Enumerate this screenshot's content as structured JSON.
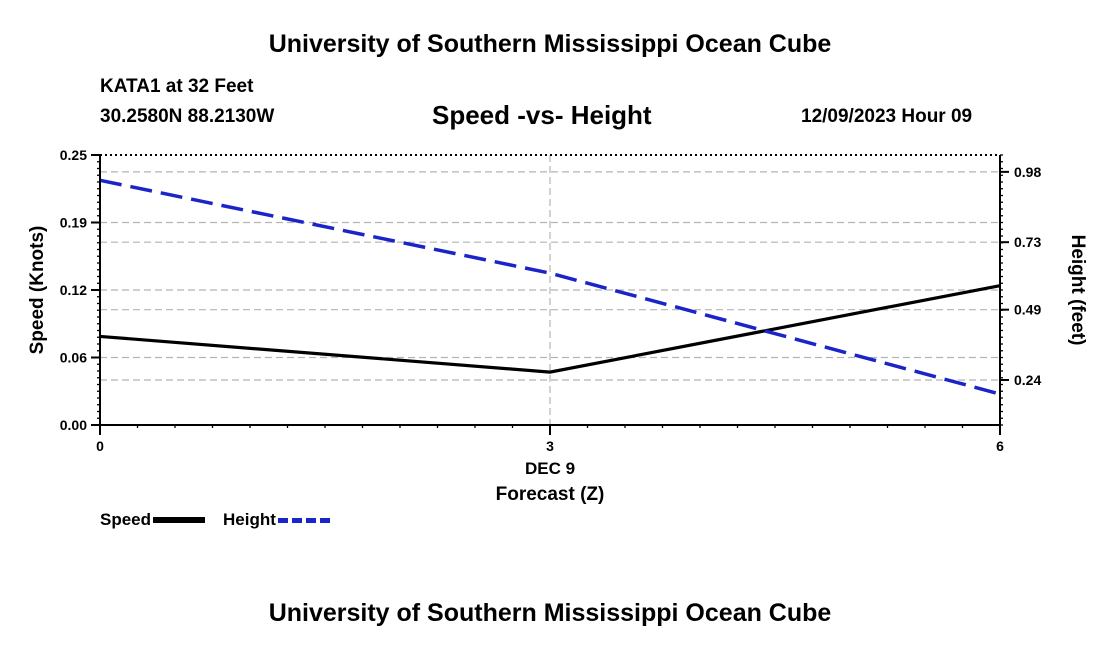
{
  "page": {
    "title_top": "University of Southern Mississippi Ocean Cube",
    "title_bottom": "University of Southern Mississippi Ocean Cube"
  },
  "header": {
    "station": "KATA1 at 32 Feet",
    "coords": "30.2580N  88.2130W",
    "chart_title": "Speed -vs- Height",
    "datetime": "12/09/2023 Hour 09"
  },
  "chart_data": {
    "type": "line",
    "title": "Speed -vs- Height",
    "xlabel": "Forecast (Z)",
    "x_sublabel": "DEC 9",
    "ylabel": "Speed (Knots)",
    "ylabel_right": "Height (feet)",
    "x": [
      0,
      3,
      6
    ],
    "x_ticks": [
      "0",
      "3",
      "6"
    ],
    "xlim": [
      0,
      6
    ],
    "ylim": [
      0,
      0.25
    ],
    "ylim_right": [
      0.08,
      1.04
    ],
    "y_ticks": [
      "0.00",
      "0.06",
      "0.12",
      "0.19",
      "0.25"
    ],
    "y_tick_values": [
      0,
      0.0625,
      0.125,
      0.1875,
      0.25
    ],
    "y_ticks_right": [
      "0.24",
      "0.49",
      "0.73",
      "0.98"
    ],
    "y_tick_values_right": [
      0.24,
      0.49,
      0.73,
      0.98
    ],
    "grid": true,
    "series": [
      {
        "name": "Speed",
        "axis": "left",
        "values": [
          0.082,
          0.049,
          0.129
        ],
        "color": "#000000",
        "style": "solid"
      },
      {
        "name": "Height",
        "axis": "right",
        "values": [
          0.95,
          0.62,
          0.19
        ],
        "color": "#1a24c8",
        "style": "dashed"
      }
    ]
  },
  "legend": {
    "items": [
      {
        "label": "Speed",
        "color": "#000000",
        "style": "solid"
      },
      {
        "label": "Height",
        "color": "#1a24c8",
        "style": "dashed"
      }
    ]
  }
}
